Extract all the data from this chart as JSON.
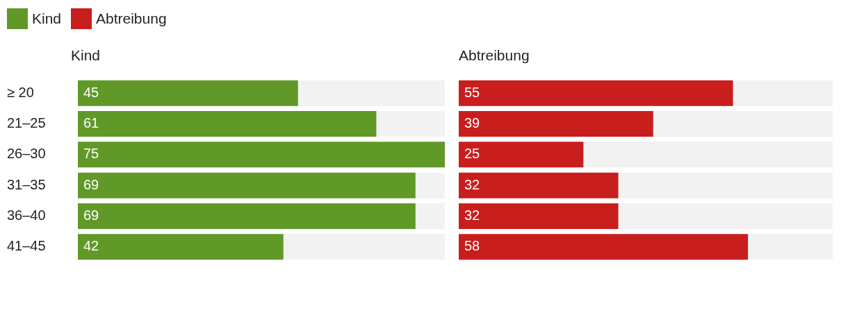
{
  "chart_data": [
    {
      "type": "bar",
      "orientation": "horizontal",
      "title": "Kind",
      "categories": [
        "≥ 20",
        "21–25",
        "26–30",
        "31–35",
        "36–40",
        "41–45"
      ],
      "series": [
        {
          "name": "Kind",
          "color": "#609928",
          "values": [
            45,
            61,
            75,
            69,
            69,
            42
          ]
        }
      ],
      "xlim": [
        0,
        75
      ],
      "tick_labels": "y",
      "legend": "top left",
      "data_labels": true
    },
    {
      "type": "bar",
      "orientation": "horizontal",
      "title": "Abtreibung",
      "categories": [
        null,
        null,
        null,
        null,
        null,
        null
      ],
      "series": [
        {
          "name": "Abtreibung",
          "color": "#c91e1e",
          "values": [
            55,
            39,
            25,
            32,
            32,
            58
          ]
        }
      ],
      "xlim": [
        0,
        75
      ],
      "tick_labels": false,
      "legend": "top left",
      "data_labels": true
    }
  ]
}
